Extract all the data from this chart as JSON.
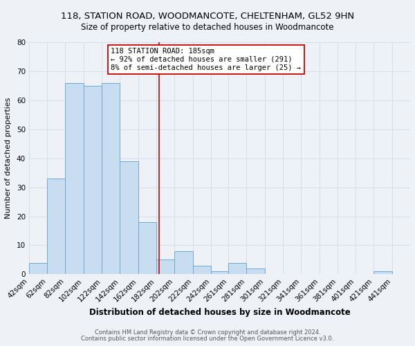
{
  "title": "118, STATION ROAD, WOODMANCOTE, CHELTENHAM, GL52 9HN",
  "subtitle": "Size of property relative to detached houses in Woodmancote",
  "xlabel": "Distribution of detached houses by size in Woodmancote",
  "ylabel": "Number of detached properties",
  "bin_labels": [
    "42sqm",
    "62sqm",
    "82sqm",
    "102sqm",
    "122sqm",
    "142sqm",
    "162sqm",
    "182sqm",
    "202sqm",
    "222sqm",
    "242sqm",
    "261sqm",
    "281sqm",
    "301sqm",
    "321sqm",
    "341sqm",
    "361sqm",
    "381sqm",
    "401sqm",
    "421sqm",
    "441sqm"
  ],
  "bin_edges": [
    42,
    62,
    82,
    102,
    122,
    142,
    162,
    182,
    202,
    222,
    242,
    261,
    281,
    301,
    321,
    341,
    361,
    381,
    401,
    421,
    441,
    461
  ],
  "counts": [
    4,
    33,
    66,
    65,
    66,
    39,
    18,
    5,
    8,
    3,
    1,
    4,
    2,
    0,
    0,
    0,
    0,
    0,
    0,
    1,
    0
  ],
  "bar_color": "#c8ddef",
  "bar_edge_color": "#6aaad4",
  "property_line_x": 185,
  "property_line_color": "#cc0000",
  "annotation_text": "118 STATION ROAD: 185sqm\n← 92% of detached houses are smaller (291)\n8% of semi-detached houses are larger (25) →",
  "annotation_box_facecolor": "#ffffff",
  "annotation_box_edgecolor": "#cc0000",
  "ylim": [
    0,
    80
  ],
  "yticks": [
    0,
    10,
    20,
    30,
    40,
    50,
    60,
    70,
    80
  ],
  "footer1": "Contains HM Land Registry data © Crown copyright and database right 2024.",
  "footer2": "Contains public sector information licensed under the Open Government Licence v3.0.",
  "bg_color": "#eef2f7",
  "grid_color": "#d0dce8",
  "title_fontsize": 9.5,
  "subtitle_fontsize": 8.5,
  "xlabel_fontsize": 8.5,
  "ylabel_fontsize": 8,
  "tick_fontsize": 7.5,
  "annotation_fontsize": 7.5,
  "footer_fontsize": 6.0
}
